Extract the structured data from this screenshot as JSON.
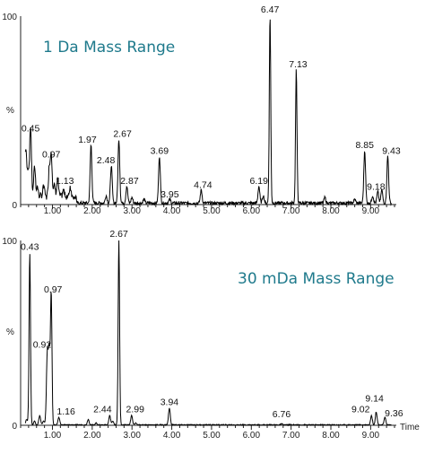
{
  "chart_data": [
    {
      "type": "line",
      "title": "1 Da Mass Range",
      "ylabel": "%",
      "xlabel": "",
      "xlim": [
        0.2,
        9.6
      ],
      "ylim": [
        0,
        100
      ],
      "y_ticks": [
        "0",
        "100"
      ],
      "x_ticks": [
        "1.00",
        "2.00",
        "3.00",
        "4.00",
        "5.00",
        "6.00",
        "7.00",
        "8.00",
        "9.00"
      ],
      "peaks": [
        {
          "label": "0.45",
          "x": 0.45,
          "y": 37
        },
        {
          "label": "0.97",
          "x": 0.97,
          "y": 23
        },
        {
          "label": "1.13",
          "x": 1.13,
          "y": 9
        },
        {
          "label": "1.97",
          "x": 1.97,
          "y": 31
        },
        {
          "label": "2.48",
          "x": 2.48,
          "y": 20
        },
        {
          "label": "2.67",
          "x": 2.67,
          "y": 34
        },
        {
          "label": "2.87",
          "x": 2.87,
          "y": 9
        },
        {
          "label": "3.69",
          "x": 3.69,
          "y": 25
        },
        {
          "label": "3.95",
          "x": 3.95,
          "y": 2
        },
        {
          "label": "4.74",
          "x": 4.74,
          "y": 7
        },
        {
          "label": "6.19",
          "x": 6.19,
          "y": 9
        },
        {
          "label": "6.47",
          "x": 6.47,
          "y": 100
        },
        {
          "label": "7.13",
          "x": 7.13,
          "y": 71
        },
        {
          "label": "8.85",
          "x": 8.85,
          "y": 28
        },
        {
          "label": "9.18",
          "x": 9.18,
          "y": 6
        },
        {
          "label": "9.43",
          "x": 9.43,
          "y": 25
        }
      ],
      "extra_peaks": [
        {
          "x": 0.33,
          "y": 26
        },
        {
          "x": 0.39,
          "y": 14
        },
        {
          "x": 0.55,
          "y": 16
        },
        {
          "x": 0.62,
          "y": 5
        },
        {
          "x": 0.78,
          "y": 6
        },
        {
          "x": 0.92,
          "y": 15
        },
        {
          "x": 1.05,
          "y": 6
        },
        {
          "x": 1.28,
          "y": 3
        },
        {
          "x": 1.45,
          "y": 5
        },
        {
          "x": 2.35,
          "y": 4
        },
        {
          "x": 3.0,
          "y": 3
        },
        {
          "x": 3.3,
          "y": 2
        },
        {
          "x": 6.3,
          "y": 4
        },
        {
          "x": 7.85,
          "y": 3
        },
        {
          "x": 8.6,
          "y": 2
        },
        {
          "x": 9.05,
          "y": 4
        },
        {
          "x": 9.28,
          "y": 7
        }
      ]
    },
    {
      "type": "line",
      "title": "30 mDa Mass Range",
      "ylabel": "%",
      "xlabel": "Time",
      "xlim": [
        0.2,
        9.6
      ],
      "ylim": [
        0,
        100
      ],
      "y_ticks": [
        "0",
        "100"
      ],
      "x_ticks": [
        "1.00",
        "2.00",
        "3.00",
        "4.00",
        "5.00",
        "6.00",
        "7.00",
        "8.00",
        "9.00"
      ],
      "peaks": [
        {
          "label": "0.43",
          "x": 0.43,
          "y": 93
        },
        {
          "label": "0.92",
          "x": 0.92,
          "y": 40
        },
        {
          "label": "0.97",
          "x": 0.97,
          "y": 70
        },
        {
          "label": "1.16",
          "x": 1.16,
          "y": 4
        },
        {
          "label": "2.44",
          "x": 2.44,
          "y": 5
        },
        {
          "label": "2.67",
          "x": 2.67,
          "y": 100
        },
        {
          "label": "2.99",
          "x": 2.99,
          "y": 5
        },
        {
          "label": "3.94",
          "x": 3.94,
          "y": 9
        },
        {
          "label": "6.76",
          "x": 6.76,
          "y": 0.5
        },
        {
          "label": "9.02",
          "x": 9.02,
          "y": 5
        },
        {
          "label": "9.14",
          "x": 9.14,
          "y": 7
        },
        {
          "label": "9.36",
          "x": 9.36,
          "y": 4
        }
      ],
      "extra_peaks": [
        {
          "x": 0.35,
          "y": 3
        },
        {
          "x": 0.55,
          "y": 2
        },
        {
          "x": 0.68,
          "y": 5
        },
        {
          "x": 0.78,
          "y": 2
        },
        {
          "x": 0.87,
          "y": 38
        },
        {
          "x": 1.9,
          "y": 3
        },
        {
          "x": 2.1,
          "y": 1
        },
        {
          "x": 2.52,
          "y": 2
        },
        {
          "x": 3.1,
          "y": 1
        }
      ]
    }
  ]
}
